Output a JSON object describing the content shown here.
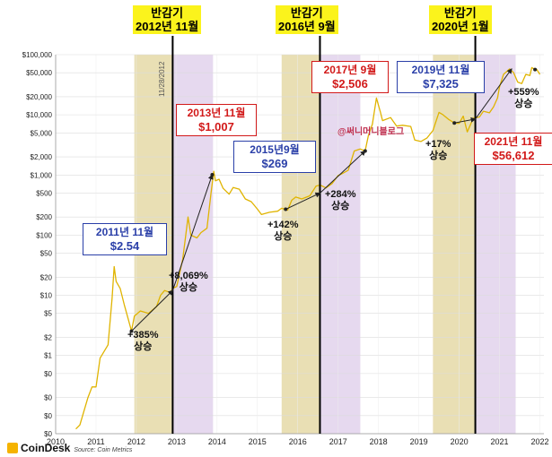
{
  "chart_data": {
    "type": "line",
    "title": "",
    "xlabel": "",
    "ylabel": "",
    "yscale": "log",
    "x_ticks": [
      "2010",
      "2011",
      "2012",
      "2013",
      "2014",
      "2015",
      "2016",
      "2017",
      "2018",
      "2019",
      "2020",
      "2021",
      "2022"
    ],
    "y_ticks": [
      "$100,000",
      "$50,000",
      "$20,000",
      "$10,000",
      "$5,000",
      "$2,000",
      "$1,000",
      "$500",
      "$200",
      "$100",
      "$50",
      "$20",
      "$10",
      "$5",
      "$2",
      "$1",
      "$0.50",
      "$0.20",
      "$0.10",
      "$0.05"
    ],
    "y_tick_labels": [
      "$100,000",
      "$50,000",
      "$20,000",
      "$10,000",
      "$5,000",
      "$2,000",
      "$1,000",
      "$500",
      "$200",
      "$100",
      "$50",
      "$20",
      "$10",
      "$5",
      "$2",
      "$1",
      "$0",
      "$0",
      "$0",
      "$0"
    ],
    "ylim": [
      0.05,
      100000
    ],
    "xlim": [
      2010.0,
      2022.1
    ],
    "grid": true,
    "series": [
      {
        "color": "#e0b400",
        "points": [
          [
            2010.5,
            0.06
          ],
          [
            2010.6,
            0.07
          ],
          [
            2010.8,
            0.2
          ],
          [
            2010.9,
            0.3
          ],
          [
            2011.0,
            0.3
          ],
          [
            2011.1,
            0.9
          ],
          [
            2011.3,
            1.5
          ],
          [
            2011.4,
            9
          ],
          [
            2011.45,
            30
          ],
          [
            2011.5,
            17
          ],
          [
            2011.6,
            13
          ],
          [
            2011.7,
            7
          ],
          [
            2011.8,
            4
          ],
          [
            2011.88,
            2.54
          ],
          [
            2011.95,
            4.5
          ],
          [
            2012.1,
            5.5
          ],
          [
            2012.3,
            5
          ],
          [
            2012.5,
            6.5
          ],
          [
            2012.6,
            10
          ],
          [
            2012.7,
            12
          ],
          [
            2012.85,
            11
          ],
          [
            2012.9,
            13
          ],
          [
            2013.0,
            14
          ],
          [
            2013.15,
            40
          ],
          [
            2013.28,
            200
          ],
          [
            2013.35,
            100
          ],
          [
            2013.5,
            90
          ],
          [
            2013.6,
            110
          ],
          [
            2013.75,
            130
          ],
          [
            2013.85,
            500
          ],
          [
            2013.92,
            1150
          ],
          [
            2013.96,
            800
          ],
          [
            2014.05,
            850
          ],
          [
            2014.15,
            600
          ],
          [
            2014.3,
            480
          ],
          [
            2014.4,
            620
          ],
          [
            2014.55,
            580
          ],
          [
            2014.7,
            400
          ],
          [
            2014.85,
            360
          ],
          [
            2015.0,
            270
          ],
          [
            2015.1,
            220
          ],
          [
            2015.3,
            240
          ],
          [
            2015.5,
            250
          ],
          [
            2015.6,
            280
          ],
          [
            2015.75,
            260
          ],
          [
            2015.85,
            380
          ],
          [
            2015.95,
            430
          ],
          [
            2016.1,
            400
          ],
          [
            2016.3,
            450
          ],
          [
            2016.45,
            650
          ],
          [
            2016.55,
            680
          ],
          [
            2016.7,
            610
          ],
          [
            2016.85,
            720
          ],
          [
            2017.0,
            980
          ],
          [
            2017.1,
            1050
          ],
          [
            2017.25,
            1200
          ],
          [
            2017.4,
            2500
          ],
          [
            2017.55,
            2700
          ],
          [
            2017.67,
            2506
          ],
          [
            2017.75,
            4500
          ],
          [
            2017.85,
            7000
          ],
          [
            2017.95,
            19000
          ],
          [
            2018.05,
            11000
          ],
          [
            2018.1,
            8000
          ],
          [
            2018.3,
            9000
          ],
          [
            2018.45,
            6500
          ],
          [
            2018.6,
            6700
          ],
          [
            2018.8,
            6400
          ],
          [
            2018.9,
            3800
          ],
          [
            2019.05,
            3600
          ],
          [
            2019.2,
            4100
          ],
          [
            2019.35,
            5500
          ],
          [
            2019.5,
            11000
          ],
          [
            2019.6,
            10000
          ],
          [
            2019.75,
            8300
          ],
          [
            2019.88,
            7325
          ],
          [
            2020.0,
            7200
          ],
          [
            2020.1,
            9500
          ],
          [
            2020.2,
            5200
          ],
          [
            2020.35,
            8800
          ],
          [
            2020.5,
            9200
          ],
          [
            2020.6,
            11500
          ],
          [
            2020.75,
            10800
          ],
          [
            2020.85,
            13500
          ],
          [
            2020.95,
            19000
          ],
          [
            2021.0,
            29000
          ],
          [
            2021.1,
            47000
          ],
          [
            2021.25,
            58000
          ],
          [
            2021.35,
            50000
          ],
          [
            2021.45,
            35000
          ],
          [
            2021.55,
            33000
          ],
          [
            2021.65,
            47000
          ],
          [
            2021.75,
            45000
          ],
          [
            2021.8,
            61000
          ],
          [
            2021.88,
            56612
          ],
          [
            2021.92,
            57000
          ],
          [
            2022.0,
            47000
          ]
        ]
      }
    ],
    "halving_periods": [
      {
        "label": [
          "반감기",
          "2012년 11월"
        ],
        "x": 2012.9,
        "shade_before": [
          2011.95,
          2012.9
        ],
        "shade_after": [
          2012.9,
          2013.9
        ]
      },
      {
        "label": [
          "반감기",
          "2016년 9월"
        ],
        "x": 2016.55,
        "shade_before": [
          2015.6,
          2016.55
        ],
        "shade_after": [
          2016.55,
          2017.55
        ]
      },
      {
        "label": [
          "반감기",
          "2020년 1월"
        ],
        "x": 2020.4,
        "shade_before": [
          2019.35,
          2020.4
        ],
        "shade_after": [
          2020.4,
          2021.4
        ]
      }
    ],
    "annotations": [
      {
        "date": "2011년 11월",
        "price": "$2.54",
        "style": "blue",
        "x": 2011.88,
        "y": 2.54
      },
      {
        "date": "2013년 11월",
        "price": "$1,007",
        "style": "red",
        "x": 2013.88,
        "y": 1007
      },
      {
        "date": "2015년9월",
        "price": "$269",
        "style": "blue",
        "x": 2015.7,
        "y": 269
      },
      {
        "date": "2017년 9월",
        "price": "$2,506",
        "style": "red",
        "x": 2017.67,
        "y": 2506
      },
      {
        "date": "2019년 11월",
        "price": "$7,325",
        "style": "blue",
        "x": 2019.88,
        "y": 7325
      },
      {
        "date": "2021년 11월",
        "price": "$56,612",
        "style": "red",
        "x": 2021.88,
        "y": 56612
      }
    ],
    "gains": [
      {
        "pct": "+385%",
        "word": "상승"
      },
      {
        "pct": "+8,069%",
        "word": "상승"
      },
      {
        "pct": "+142%",
        "word": "상승"
      },
      {
        "pct": "+284%",
        "word": "상승"
      },
      {
        "pct": "+17%",
        "word": "상승"
      },
      {
        "pct": "+559%",
        "word": "상승"
      }
    ],
    "rotated_label": "11/28/2012",
    "watermark": "@써니머니블로그",
    "brand": "CoinDesk",
    "source": "Source: Coin Metrics",
    "colors": {
      "shade_before": "#e9dfb4",
      "shade_after": "#e6d9ef",
      "line": "#e0b400",
      "box_blue": "#2a3fa8",
      "box_red": "#d21919",
      "highlight": "#fbf31c"
    }
  }
}
